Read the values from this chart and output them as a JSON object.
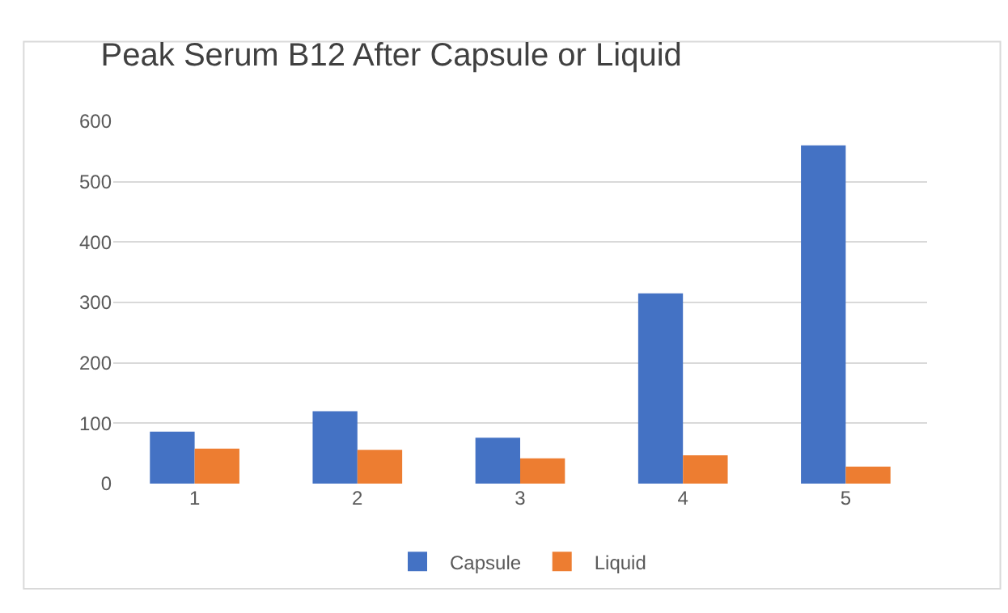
{
  "chart_data": {
    "type": "bar",
    "title": "Peak Serum B12 After Capsule or Liquid",
    "categories": [
      "1",
      "2",
      "3",
      "4",
      "5"
    ],
    "series": [
      {
        "name": "Capsule",
        "color": "#4472c4",
        "values": [
          86,
          120,
          76,
          315,
          560
        ]
      },
      {
        "name": "Liquid",
        "color": "#ed7d31",
        "values": [
          58,
          56,
          42,
          47,
          28
        ]
      }
    ],
    "ylim": [
      0,
      600
    ],
    "yticks": [
      0,
      100,
      200,
      300,
      400,
      500,
      600
    ],
    "grid": "y",
    "legend": "bottom"
  }
}
